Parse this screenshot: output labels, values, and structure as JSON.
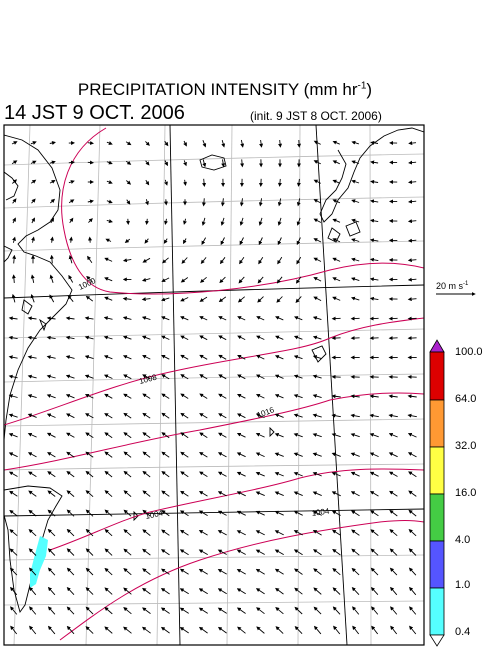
{
  "title": {
    "main_prefix": "PRECIPITATION INTENSITY (mm hr",
    "main_exp": "-1",
    "main_suffix": ")",
    "valid_time": "14 JST 9 OCT. 2006",
    "init_time": "(init. 9 JST 8 OCT. 2006)"
  },
  "wind_reference": {
    "label_prefix": "20 m s",
    "label_exp": "-1"
  },
  "isobars": [
    {
      "label": "1000"
    },
    {
      "label": "1008"
    },
    {
      "label": "1016"
    },
    {
      "label": "1004"
    },
    {
      "label": "1004"
    }
  ],
  "colorbar": {
    "labels": [
      "100.0",
      "64.0",
      "32.0",
      "16.0",
      "4.0",
      "1.0",
      "0.4"
    ],
    "colors": [
      "#dd0000",
      "#ff9933",
      "#ffff44",
      "#44cc44",
      "#5555ff",
      "#55ffff"
    ],
    "over_color": "#aa22cc",
    "under_color": "#ffffff"
  },
  "colors": {
    "isobar": "#cc0055",
    "coastline": "#000000",
    "grid": "#bbbbbb",
    "rain": "#55ffff"
  }
}
